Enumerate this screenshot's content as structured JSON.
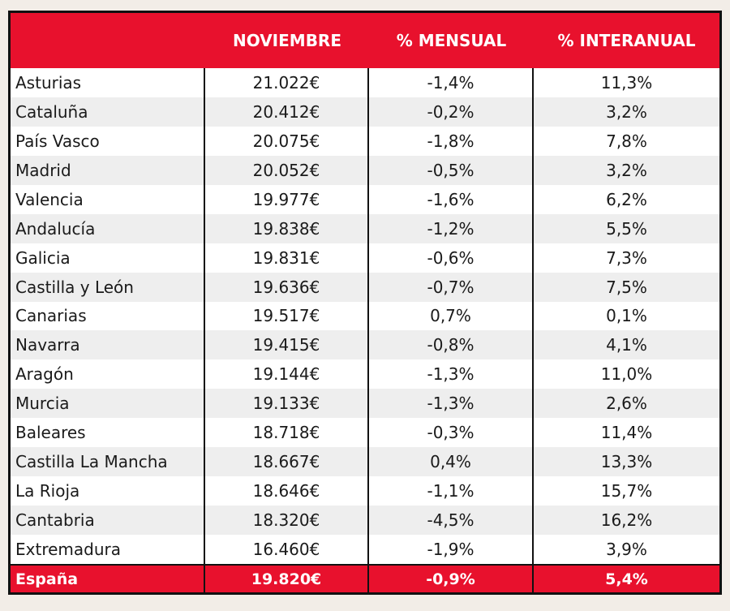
{
  "chart_data": {
    "type": "table",
    "columns": [
      "",
      "NOVIEMBRE",
      "% MENSUAL",
      "% INTERANUAL"
    ],
    "rows": [
      {
        "region": "Asturias",
        "noviembre": "21.022€",
        "mensual": "-1,4%",
        "interanual": "11,3%"
      },
      {
        "region": "Cataluña",
        "noviembre": "20.412€",
        "mensual": "-0,2%",
        "interanual": "3,2%"
      },
      {
        "region": "País Vasco",
        "noviembre": "20.075€",
        "mensual": "-1,8%",
        "interanual": "7,8%"
      },
      {
        "region": "Madrid",
        "noviembre": "20.052€",
        "mensual": "-0,5%",
        "interanual": "3,2%"
      },
      {
        "region": "Valencia",
        "noviembre": "19.977€",
        "mensual": "-1,6%",
        "interanual": "6,2%"
      },
      {
        "region": "Andalucía",
        "noviembre": "19.838€",
        "mensual": "-1,2%",
        "interanual": "5,5%"
      },
      {
        "region": "Galicia",
        "noviembre": "19.831€",
        "mensual": "-0,6%",
        "interanual": "7,3%"
      },
      {
        "region": "Castilla y León",
        "noviembre": "19.636€",
        "mensual": "-0,7%",
        "interanual": "7,5%"
      },
      {
        "region": "Canarias",
        "noviembre": "19.517€",
        "mensual": "0,7%",
        "interanual": "0,1%"
      },
      {
        "region": "Navarra",
        "noviembre": "19.415€",
        "mensual": "-0,8%",
        "interanual": "4,1%"
      },
      {
        "region": "Aragón",
        "noviembre": "19.144€",
        "mensual": "-1,3%",
        "interanual": "11,0%"
      },
      {
        "region": "Murcia",
        "noviembre": "19.133€",
        "mensual": "-1,3%",
        "interanual": "2,6%"
      },
      {
        "region": "Baleares",
        "noviembre": "18.718€",
        "mensual": "-0,3%",
        "interanual": "11,4%"
      },
      {
        "region": "Castilla La Mancha",
        "noviembre": "18.667€",
        "mensual": "0,4%",
        "interanual": "13,3%"
      },
      {
        "region": "La Rioja",
        "noviembre": "18.646€",
        "mensual": "-1,1%",
        "interanual": "15,7%"
      },
      {
        "region": "Cantabria",
        "noviembre": "18.320€",
        "mensual": "-4,5%",
        "interanual": "16,2%"
      },
      {
        "region": "Extremadura",
        "noviembre": "16.460€",
        "mensual": "-1,9%",
        "interanual": "3,9%"
      }
    ],
    "total": {
      "region": "España",
      "noviembre": "19.820€",
      "mensual": "-0,9%",
      "interanual": "5,4%"
    }
  },
  "colors": {
    "header_bg": "#e8112d",
    "header_text": "#ffffff",
    "row_alt": "#eeeeee",
    "border": "#111111"
  }
}
